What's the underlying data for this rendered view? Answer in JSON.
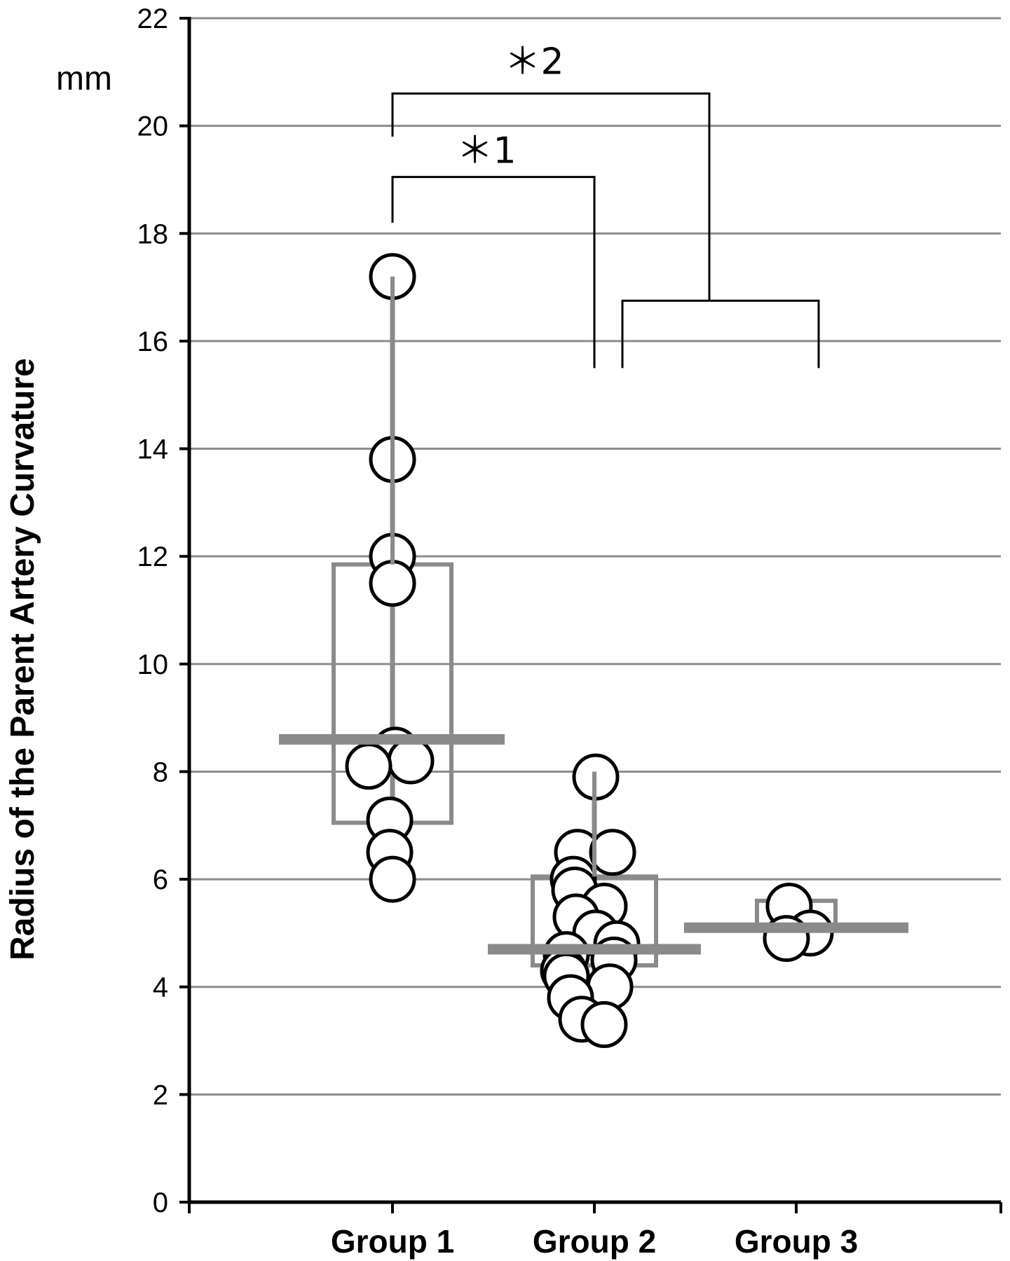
{
  "chart_data": {
    "type": "scatter",
    "ylabel": "Radius of the Parent Artery Curvature",
    "yunit": "mm",
    "ylim": [
      0,
      22
    ],
    "yticks": [
      0,
      2,
      4,
      6,
      8,
      10,
      12,
      14,
      16,
      18,
      20,
      22
    ],
    "grid": true,
    "categories": [
      "Group 1",
      "Group 2",
      "Group 3"
    ],
    "groups": [
      {
        "category": "Group 1",
        "points": [
          17.2,
          13.8,
          12.0,
          11.5,
          8.4,
          8.2,
          8.1,
          7.1,
          6.5,
          6.0
        ],
        "median": 8.6,
        "q1": 7.05,
        "q3": 11.85,
        "whisker_low": 6.05,
        "whisker_high": 17.2
      },
      {
        "category": "Group 2",
        "points": [
          7.9,
          6.5,
          6.5,
          6.0,
          5.8,
          5.5,
          5.3,
          5.0,
          4.8,
          4.6,
          4.5,
          4.3,
          4.2,
          4.0,
          3.8,
          3.4,
          3.3
        ],
        "median": 4.7,
        "q1": 4.4,
        "q3": 6.05,
        "whisker_low": 3.3,
        "whisker_high": 8.0
      },
      {
        "category": "Group 3",
        "points": [
          5.5,
          5.0,
          4.9
        ],
        "median": 5.1,
        "q1": 5.05,
        "q3": 5.6
      }
    ],
    "annotations": [
      {
        "label": "＊1",
        "from": "Group 1",
        "to": [
          "Group 2"
        ]
      },
      {
        "label": "＊2",
        "from": "Group 1",
        "to": [
          "Group 2",
          "Group 3"
        ]
      }
    ]
  }
}
